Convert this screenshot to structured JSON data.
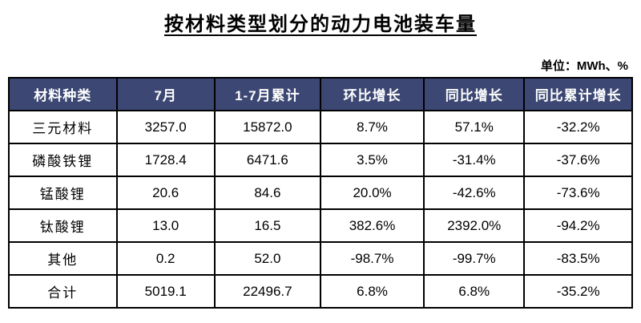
{
  "header": {
    "title": "按材料类型划分的动力电池装车量",
    "unit_label": "单位：MWh、%"
  },
  "colors": {
    "header_bg": "#3C4873",
    "header_text": "#FFFFFF",
    "border": "#000000"
  },
  "chart_data": {
    "type": "table",
    "title": "按材料类型划分的动力电池装车量",
    "unit": "MWh、%",
    "columns": [
      "材料种类",
      "7月",
      "1-7月累计",
      "环比增长",
      "同比增长",
      "同比累计增长"
    ],
    "rows": [
      [
        "三元材料",
        "3257.0",
        "15872.0",
        "8.7%",
        "57.1%",
        "-32.2%"
      ],
      [
        "磷酸铁锂",
        "1728.4",
        "6471.6",
        "3.5%",
        "-31.4%",
        "-37.6%"
      ],
      [
        "锰酸锂",
        "20.6",
        "84.6",
        "20.0%",
        "-42.6%",
        "-73.6%"
      ],
      [
        "钛酸锂",
        "13.0",
        "16.5",
        "382.6%",
        "2392.0%",
        "-94.2%"
      ],
      [
        "其他",
        "0.2",
        "52.0",
        "-98.7%",
        "-99.7%",
        "-83.5%"
      ],
      [
        "合计",
        "5019.1",
        "22496.7",
        "6.8%",
        "6.8%",
        "-35.2%"
      ]
    ]
  }
}
